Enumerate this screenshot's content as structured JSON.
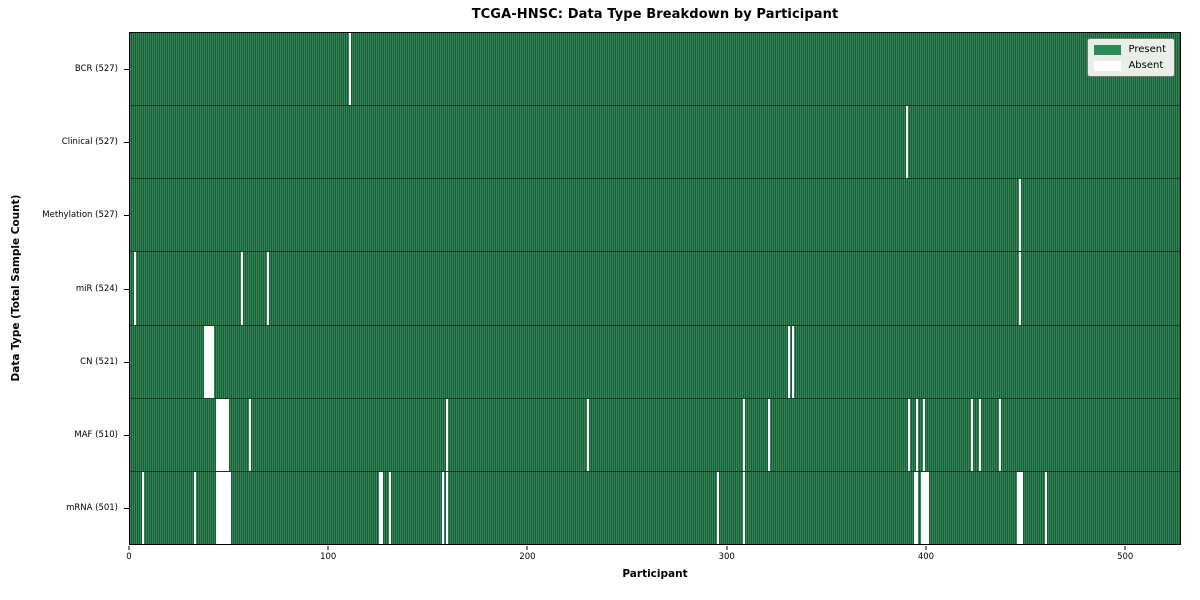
{
  "chart_data": {
    "type": "heatmap",
    "title": "TCGA-HNSC: Data Type Breakdown by Participant",
    "xlabel": "Participant",
    "ylabel": "Data Type (Total Sample Count)",
    "n_participants": 528,
    "x_range": [
      0,
      528
    ],
    "x_ticks": [
      0,
      100,
      200,
      300,
      400,
      500
    ],
    "grid": false,
    "colors": {
      "present": "#2e8b57",
      "present_edge": "#1e5a38",
      "absent": "#ffffff"
    },
    "legend": {
      "position": "upper right",
      "entries": [
        {
          "label": "Present",
          "color": "#2e8b57"
        },
        {
          "label": "Absent",
          "color": "#ffffff"
        }
      ]
    },
    "rows": [
      {
        "name": "bcr",
        "label": "BCR (527)",
        "present_count": 527,
        "absent_participants": [
          110
        ]
      },
      {
        "name": "clinical",
        "label": "Clinical (527)",
        "present_count": 527,
        "absent_participants": [
          390
        ]
      },
      {
        "name": "methylation",
        "label": "Methylation (527)",
        "present_count": 527,
        "absent_participants": [
          447
        ]
      },
      {
        "name": "mir",
        "label": "miR (524)",
        "present_count": 524,
        "absent_participants": [
          2,
          56,
          69,
          447
        ]
      },
      {
        "name": "cn",
        "label": "CN (521)",
        "present_count": 521,
        "absent_participants": [
          37,
          38,
          39,
          40,
          41,
          331,
          333
        ]
      },
      {
        "name": "maf",
        "label": "MAF (510)",
        "present_count": 510,
        "absent_participants": [
          43,
          44,
          45,
          46,
          47,
          48,
          49,
          60,
          159,
          230,
          308,
          321,
          391,
          395,
          399,
          423,
          427,
          437
        ]
      },
      {
        "name": "mrna",
        "label": "mRNA (501)",
        "present_count": 501,
        "absent_participants": [
          6,
          32,
          43,
          44,
          45,
          46,
          47,
          48,
          49,
          50,
          125,
          126,
          130,
          157,
          159,
          295,
          308,
          394,
          395,
          398,
          399,
          400,
          401,
          446,
          447,
          448,
          460
        ]
      }
    ]
  }
}
